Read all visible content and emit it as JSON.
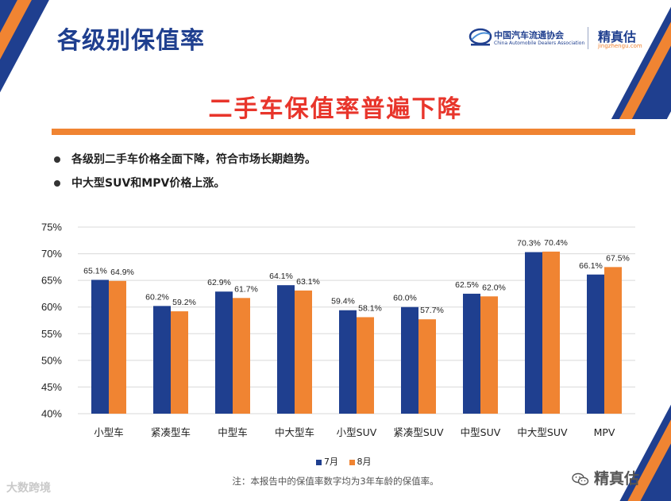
{
  "header": {
    "title": "各级别保值率",
    "association_name": "中国汽车流通协会",
    "association_en": "China Automobile Dealers Association",
    "brand_name": "精真估",
    "brand_url": "jingzhengu.com"
  },
  "headline": "二手车保值率普遍下降",
  "bullets": [
    "各级别二手车价格全面下降，符合市场长期趋势。",
    "中大型SUV和MPV价格上涨。"
  ],
  "colors": {
    "series_1": "#1f3f8f",
    "series_2": "#f08432",
    "headline": "#e8352b"
  },
  "chart_data": {
    "type": "bar",
    "categories": [
      "小型车",
      "紧凑型车",
      "中型车",
      "中大型车",
      "小型SUV",
      "紧凑型SUV",
      "中型SUV",
      "中大型SUV",
      "MPV"
    ],
    "series": [
      {
        "name": "7月",
        "values": [
          65.1,
          60.2,
          62.9,
          64.1,
          59.4,
          60.0,
          62.5,
          70.3,
          66.1
        ]
      },
      {
        "name": "8月",
        "values": [
          64.9,
          59.2,
          61.7,
          63.1,
          58.1,
          57.7,
          62.0,
          70.4,
          67.5
        ]
      }
    ],
    "data_labels": [
      [
        "65.1%",
        "60.2%",
        "62.9%",
        "64.1%",
        "59.4%",
        "60.0%",
        "62.5%",
        "70.3%",
        "66.1%"
      ],
      [
        "64.9%",
        "59.2%",
        "61.7%",
        "63.1%",
        "58.1%",
        "57.7%",
        "62.0%",
        "70.4%",
        "67.5%"
      ]
    ],
    "ylim": [
      40,
      75
    ],
    "yticks": [
      40,
      45,
      50,
      55,
      60,
      65,
      70,
      75
    ],
    "ytick_labels": [
      "40%",
      "45%",
      "50%",
      "55%",
      "60%",
      "65%",
      "70%",
      "75%"
    ],
    "grid": true,
    "legend_position": "bottom"
  },
  "footnote": "注：本报告中的保值率数字均为3年车龄的保值率。",
  "watermarks": {
    "bottom_left": "大数跨境",
    "bottom_right": "精真估"
  }
}
